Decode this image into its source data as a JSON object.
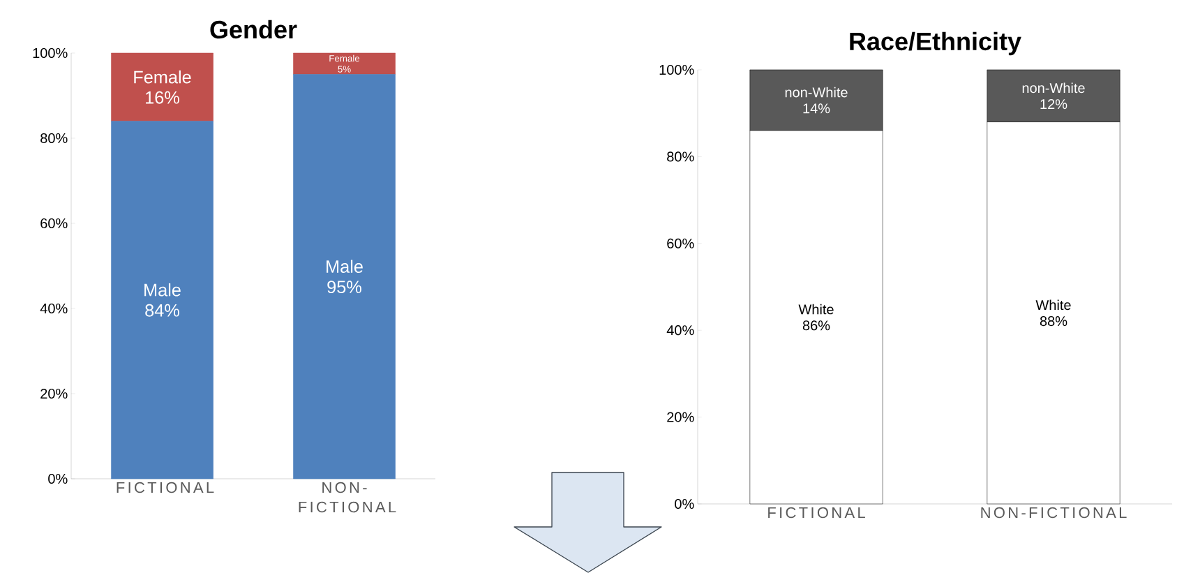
{
  "chart_data": [
    {
      "type": "bar",
      "title": "Gender",
      "stacked": true,
      "categories": [
        "FICTIONAL",
        "NON-FICTIONAL"
      ],
      "ylim": [
        0,
        100
      ],
      "yticks": [
        {
          "value": 0,
          "label": "0%"
        },
        {
          "value": 20,
          "label": "20%"
        },
        {
          "value": 40,
          "label": "40%"
        },
        {
          "value": 60,
          "label": "60%"
        },
        {
          "value": 80,
          "label": "80%"
        },
        {
          "value": 100,
          "label": "100%"
        }
      ],
      "series": [
        {
          "name": "Male",
          "color": "#4f81bd",
          "values": [
            84,
            95
          ],
          "value_labels": [
            "84%",
            "95%"
          ]
        },
        {
          "name": "Female",
          "color": "#c0504d",
          "values": [
            16,
            5
          ],
          "value_labels": [
            "16%",
            "5%"
          ]
        }
      ]
    },
    {
      "type": "bar",
      "title": "Race/Ethnicity",
      "stacked": true,
      "categories": [
        "FICTIONAL",
        "NON-FICTIONAL"
      ],
      "ylim": [
        0,
        100
      ],
      "yticks": [
        {
          "value": 0,
          "label": "0%"
        },
        {
          "value": 20,
          "label": "20%"
        },
        {
          "value": 40,
          "label": "40%"
        },
        {
          "value": 60,
          "label": "60%"
        },
        {
          "value": 80,
          "label": "80%"
        },
        {
          "value": 100,
          "label": "100%"
        }
      ],
      "series": [
        {
          "name": "White",
          "color": "#ffffff",
          "values": [
            86,
            88
          ],
          "value_labels": [
            "86%",
            "88%"
          ]
        },
        {
          "name": "non-White",
          "color": "#595959",
          "values": [
            14,
            12
          ],
          "value_labels": [
            "14%",
            "12%"
          ]
        }
      ]
    }
  ]
}
